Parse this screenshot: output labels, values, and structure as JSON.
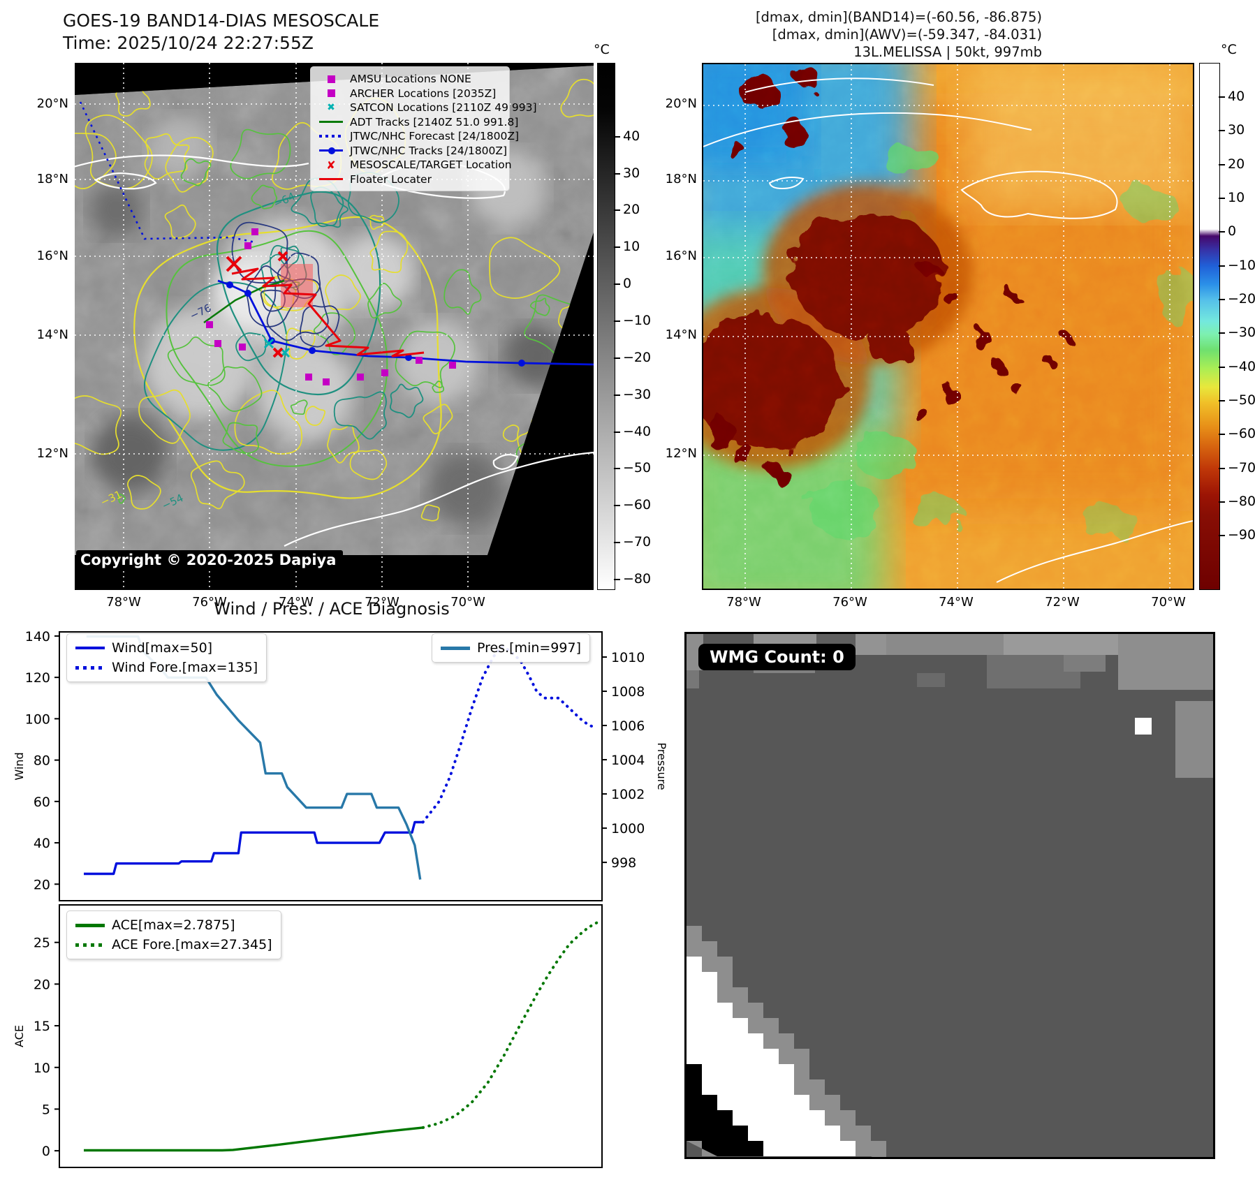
{
  "left_panel": {
    "title": "GOES-19 BAND14-DIAS MESOSCALE",
    "time": "Time: 2025/10/24 22:27:55Z",
    "copyright": "Copyright © 2020-2025 Dapiya",
    "lat_labels": [
      "20°N",
      "18°N",
      "16°N",
      "14°N",
      "12°N"
    ],
    "lon_labels": [
      "78°W",
      "76°W",
      "74°W",
      "72°W",
      "70°W"
    ],
    "colorbar": {
      "unit": "°C",
      "ticks": [
        "40",
        "30",
        "20",
        "10",
        "0",
        "−10",
        "−20",
        "−30",
        "−40",
        "−50",
        "−60",
        "−70",
        "−80"
      ]
    },
    "legend": [
      {
        "label": "AMSU Locations NONE",
        "type": "square-magenta"
      },
      {
        "label": "ARCHER Locations [2035Z]",
        "type": "square-magenta"
      },
      {
        "label": "SATCON Locations [2110Z 49 993]",
        "type": "x-cyan"
      },
      {
        "label": "ADT Tracks [2140Z 51.0 991.8]",
        "type": "line-green"
      },
      {
        "label": "JTWC/NHC Forecast [24/1800Z]",
        "type": "dotted-blue"
      },
      {
        "label": "JTWC/NHC Tracks [24/1800Z]",
        "type": "line-dot-blue"
      },
      {
        "label": "MESOSCALE/TARGET Location",
        "type": "x-red"
      },
      {
        "label": "Floater Locater",
        "type": "line-red"
      }
    ],
    "contour_labels": [
      {
        "text": "−64"
      },
      {
        "text": "−54"
      },
      {
        "text": "−31"
      },
      {
        "text": "−76"
      }
    ]
  },
  "right_panel": {
    "header_line1": "[dmax, dmin](BAND14)=(-60.56, -86.875)",
    "header_line2": "[dmax, dmin](AWV)=(-59.347, -84.031)",
    "header_line3": "13L.MELISSA | 50kt, 997mb",
    "lat_labels": [
      "20°N",
      "18°N",
      "16°N",
      "14°N",
      "12°N"
    ],
    "lon_labels": [
      "78°W",
      "76°W",
      "74°W",
      "72°W",
      "70°W"
    ],
    "colorbar": {
      "unit": "°C",
      "ticks": [
        "40",
        "30",
        "20",
        "10",
        "0",
        "−10",
        "−20",
        "−30",
        "−40",
        "−50",
        "−60",
        "−70",
        "−80",
        "−90"
      ]
    }
  },
  "bottom_left": {
    "title": "Wind / Pres. / ACE Diagnosis"
  },
  "wmg": {
    "label": "WMG Count: 0"
  },
  "colors": {
    "wind": "#0010dd",
    "pressure": "#2878a8",
    "ace": "#007700",
    "magenta": "#c400c4",
    "cyan_marker": "#00b2b2",
    "red_marker": "#e8000b",
    "adt_green": "#0a7a0a",
    "contour_yellow": "#e6de2e",
    "contour_green": "#56c23e",
    "contour_teal": "#1f9080",
    "contour_navy": "#2a3a80"
  },
  "chart_data": [
    {
      "type": "line",
      "panel": "wind_pressure",
      "title": "Wind / Pres. / ACE Diagnosis",
      "xlabel": "",
      "ylabel_left": "Wind",
      "ylabel_right": "Pressure",
      "xlim": [
        0,
        1
      ],
      "ylim_left": [
        12,
        142
      ],
      "yticks_left": [
        20,
        40,
        60,
        80,
        100,
        120,
        140
      ],
      "ylim_right": [
        995.76,
        1011.47
      ],
      "yticks_right": [
        998,
        1000,
        1002,
        1004,
        1006,
        1008,
        1010
      ],
      "grid": false,
      "series": [
        {
          "name": "Wind[max=50]",
          "axis": "left",
          "style": "solid",
          "color": "#0010dd",
          "points": [
            [
              0.045,
              25
            ],
            [
              0.1,
              25
            ],
            [
              0.105,
              30
            ],
            [
              0.22,
              30
            ],
            [
              0.225,
              31
            ],
            [
              0.28,
              31
            ],
            [
              0.285,
              35
            ],
            [
              0.33,
              35
            ],
            [
              0.335,
              45
            ],
            [
              0.47,
              45
            ],
            [
              0.475,
              40
            ],
            [
              0.59,
              40
            ],
            [
              0.6,
              45
            ],
            [
              0.65,
              45
            ],
            [
              0.655,
              50
            ],
            [
              0.67,
              50
            ]
          ]
        },
        {
          "name": "Wind Fore.[max=135]",
          "axis": "left",
          "style": "dotted",
          "color": "#0010dd",
          "points": [
            [
              0.67,
              50
            ],
            [
              0.7,
              60
            ],
            [
              0.72,
              72
            ],
            [
              0.74,
              88
            ],
            [
              0.76,
              105
            ],
            [
              0.78,
              120
            ],
            [
              0.8,
              130
            ],
            [
              0.815,
              135
            ],
            [
              0.83,
              133
            ],
            [
              0.85,
              128
            ],
            [
              0.865,
              121
            ],
            [
              0.88,
              113
            ],
            [
              0.895,
              110
            ],
            [
              0.92,
              110
            ],
            [
              0.94,
              105
            ],
            [
              0.96,
              100
            ],
            [
              0.975,
              97
            ],
            [
              0.985,
              96
            ]
          ]
        },
        {
          "name": "Pres.[min=997]",
          "axis": "right",
          "style": "solid",
          "color": "#2878a8",
          "points": [
            [
              0.05,
              1011.2
            ],
            [
              0.145,
              1011.2
            ],
            [
              0.155,
              1010.3
            ],
            [
              0.19,
              1009.2
            ],
            [
              0.2,
              1008.8
            ],
            [
              0.27,
              1008.8
            ],
            [
              0.29,
              1007.8
            ],
            [
              0.33,
              1006.3
            ],
            [
              0.37,
              1005.0
            ],
            [
              0.38,
              1003.2
            ],
            [
              0.41,
              1003.2
            ],
            [
              0.42,
              1002.4
            ],
            [
              0.455,
              1001.2
            ],
            [
              0.52,
              1001.2
            ],
            [
              0.53,
              1002.0
            ],
            [
              0.575,
              1002.0
            ],
            [
              0.585,
              1001.2
            ],
            [
              0.625,
              1001.2
            ],
            [
              0.64,
              1000.2
            ],
            [
              0.655,
              999.0
            ],
            [
              0.665,
              997.0
            ]
          ]
        }
      ]
    },
    {
      "type": "line",
      "panel": "ace",
      "xlabel": "",
      "ylabel_left": "ACE",
      "xlim": [
        0,
        1
      ],
      "ylim_left": [
        -2,
        29.5
      ],
      "yticks_left": [
        0,
        5,
        10,
        15,
        20,
        25
      ],
      "grid": false,
      "series": [
        {
          "name": "ACE[max=2.7875]",
          "axis": "left",
          "style": "solid",
          "color": "#007700",
          "points": [
            [
              0.045,
              0.05
            ],
            [
              0.3,
              0.05
            ],
            [
              0.32,
              0.1
            ],
            [
              0.4,
              0.7
            ],
            [
              0.5,
              1.5
            ],
            [
              0.6,
              2.3
            ],
            [
              0.67,
              2.7875
            ]
          ]
        },
        {
          "name": "ACE Fore.[max=27.345]",
          "axis": "left",
          "style": "dotted",
          "color": "#007700",
          "points": [
            [
              0.67,
              2.7875
            ],
            [
              0.7,
              3.3
            ],
            [
              0.73,
              4.2
            ],
            [
              0.76,
              5.8
            ],
            [
              0.79,
              8.2
            ],
            [
              0.82,
              11.5
            ],
            [
              0.85,
              15.2
            ],
            [
              0.88,
              18.8
            ],
            [
              0.9,
              21.0
            ],
            [
              0.92,
              23.0
            ],
            [
              0.94,
              24.8
            ],
            [
              0.96,
              26.0
            ],
            [
              0.975,
              26.8
            ],
            [
              0.99,
              27.345
            ]
          ]
        }
      ]
    }
  ]
}
